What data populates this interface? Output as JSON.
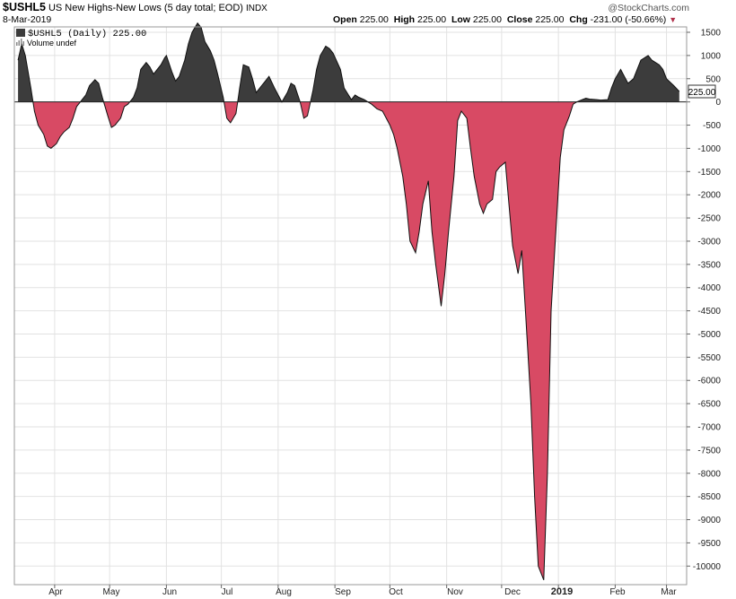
{
  "header": {
    "symbol": "$USHL5",
    "name": "US New Highs-New Lows (5 day total; EOD)",
    "exchange": "INDX",
    "date": "8-Mar-2019",
    "watermark": "@StockCharts.com",
    "open_label": "Open",
    "open": "225.00",
    "high_label": "High",
    "high": "225.00",
    "low_label": "Low",
    "low": "225.00",
    "close_label": "Close",
    "close": "225.00",
    "chg_label": "Chg",
    "chg": "-231.00 (-50.66%)"
  },
  "legend": {
    "series_text": "$USHL5 (Daily) 225.00",
    "volume_text": "Volume undef"
  },
  "chart_data": {
    "type": "area",
    "title": "$USHL5 US New Highs-New Lows (5 day total; EOD) INDX",
    "ylim": [
      -10400,
      1700
    ],
    "yticks": [
      1500,
      1000,
      500,
      0,
      -500,
      -1000,
      -1500,
      -2000,
      -2500,
      -3000,
      -3500,
      -4000,
      -4500,
      -5000,
      -5500,
      -6000,
      -6500,
      -7000,
      -7500,
      -8000,
      -8500,
      -9000,
      -9500,
      -10000
    ],
    "xticks": [
      "Apr",
      "May",
      "Jun",
      "Jul",
      "Aug",
      "Sep",
      "Oct",
      "Nov",
      "Dec",
      "2019",
      "Feb",
      "Mar"
    ],
    "last_value": "225.00",
    "positive_color": "#3c3c3c",
    "negative_color": "#d84a64",
    "grid": true,
    "series": [
      {
        "points": [
          [
            "2018-03-12",
            900
          ],
          [
            "2018-03-14",
            1250
          ],
          [
            "2018-03-16",
            1000
          ],
          [
            "2018-03-19",
            300
          ],
          [
            "2018-03-21",
            -200
          ],
          [
            "2018-03-23",
            -500
          ],
          [
            "2018-03-26",
            -700
          ],
          [
            "2018-03-28",
            -950
          ],
          [
            "2018-03-30",
            -1000
          ],
          [
            "2018-04-02",
            -900
          ],
          [
            "2018-04-04",
            -750
          ],
          [
            "2018-04-06",
            -650
          ],
          [
            "2018-04-09",
            -550
          ],
          [
            "2018-04-11",
            -350
          ],
          [
            "2018-04-13",
            -100
          ],
          [
            "2018-04-16",
            50
          ],
          [
            "2018-04-18",
            150
          ],
          [
            "2018-04-20",
            350
          ],
          [
            "2018-04-23",
            480
          ],
          [
            "2018-04-25",
            400
          ],
          [
            "2018-04-27",
            100
          ],
          [
            "2018-04-30",
            -300
          ],
          [
            "2018-05-02",
            -550
          ],
          [
            "2018-05-04",
            -500
          ],
          [
            "2018-05-07",
            -350
          ],
          [
            "2018-05-09",
            -100
          ],
          [
            "2018-05-11",
            -50
          ],
          [
            "2018-05-14",
            100
          ],
          [
            "2018-05-16",
            300
          ],
          [
            "2018-05-18",
            700
          ],
          [
            "2018-05-21",
            850
          ],
          [
            "2018-05-23",
            750
          ],
          [
            "2018-05-25",
            600
          ],
          [
            "2018-05-29",
            800
          ],
          [
            "2018-05-31",
            950
          ],
          [
            "2018-06-01",
            1000
          ],
          [
            "2018-06-04",
            650
          ],
          [
            "2018-06-06",
            450
          ],
          [
            "2018-06-08",
            550
          ],
          [
            "2018-06-11",
            900
          ],
          [
            "2018-06-13",
            1250
          ],
          [
            "2018-06-15",
            1500
          ],
          [
            "2018-06-18",
            1700
          ],
          [
            "2018-06-20",
            1600
          ],
          [
            "2018-06-22",
            1300
          ],
          [
            "2018-06-25",
            1100
          ],
          [
            "2018-06-27",
            900
          ],
          [
            "2018-06-29",
            600
          ],
          [
            "2018-07-02",
            100
          ],
          [
            "2018-07-04",
            -350
          ],
          [
            "2018-07-06",
            -450
          ],
          [
            "2018-07-09",
            -250
          ],
          [
            "2018-07-11",
            300
          ],
          [
            "2018-07-13",
            800
          ],
          [
            "2018-07-16",
            750
          ],
          [
            "2018-07-18",
            500
          ],
          [
            "2018-07-20",
            200
          ],
          [
            "2018-07-23",
            350
          ],
          [
            "2018-07-25",
            450
          ],
          [
            "2018-07-27",
            550
          ],
          [
            "2018-07-30",
            300
          ],
          [
            "2018-08-01",
            150
          ],
          [
            "2018-08-03",
            0
          ],
          [
            "2018-08-06",
            200
          ],
          [
            "2018-08-08",
            400
          ],
          [
            "2018-08-10",
            350
          ],
          [
            "2018-08-13",
            0
          ],
          [
            "2018-08-15",
            -350
          ],
          [
            "2018-08-17",
            -300
          ],
          [
            "2018-08-20",
            250
          ],
          [
            "2018-08-22",
            700
          ],
          [
            "2018-08-24",
            1000
          ],
          [
            "2018-08-27",
            1200
          ],
          [
            "2018-08-29",
            1150
          ],
          [
            "2018-08-31",
            1050
          ],
          [
            "2018-09-04",
            700
          ],
          [
            "2018-09-06",
            300
          ],
          [
            "2018-09-10",
            50
          ],
          [
            "2018-09-12",
            150
          ],
          [
            "2018-09-14",
            100
          ],
          [
            "2018-09-17",
            50
          ],
          [
            "2018-09-19",
            0
          ],
          [
            "2018-09-21",
            -50
          ],
          [
            "2018-09-24",
            -150
          ],
          [
            "2018-09-27",
            -200
          ],
          [
            "2018-10-01",
            -500
          ],
          [
            "2018-10-03",
            -700
          ],
          [
            "2018-10-05",
            -1000
          ],
          [
            "2018-10-08",
            -1600
          ],
          [
            "2018-10-10",
            -2200
          ],
          [
            "2018-10-12",
            -3000
          ],
          [
            "2018-10-15",
            -3250
          ],
          [
            "2018-10-17",
            -2800
          ],
          [
            "2018-10-19",
            -2200
          ],
          [
            "2018-10-22",
            -1700
          ],
          [
            "2018-10-24",
            -2800
          ],
          [
            "2018-10-26",
            -3500
          ],
          [
            "2018-10-29",
            -4400
          ],
          [
            "2018-10-31",
            -3700
          ],
          [
            "2018-11-02",
            -2800
          ],
          [
            "2018-11-05",
            -1600
          ],
          [
            "2018-11-07",
            -400
          ],
          [
            "2018-11-09",
            -200
          ],
          [
            "2018-11-12",
            -350
          ],
          [
            "2018-11-14",
            -1000
          ],
          [
            "2018-11-16",
            -1600
          ],
          [
            "2018-11-19",
            -2200
          ],
          [
            "2018-11-21",
            -2400
          ],
          [
            "2018-11-23",
            -2200
          ],
          [
            "2018-11-26",
            -2100
          ],
          [
            "2018-11-28",
            -1500
          ],
          [
            "2018-11-30",
            -1400
          ],
          [
            "2018-12-03",
            -1300
          ],
          [
            "2018-12-05",
            -2200
          ],
          [
            "2018-12-07",
            -3100
          ],
          [
            "2018-12-10",
            -3700
          ],
          [
            "2018-12-12",
            -3200
          ],
          [
            "2018-12-14",
            -4500
          ],
          [
            "2018-12-17",
            -6500
          ],
          [
            "2018-12-19",
            -8500
          ],
          [
            "2018-12-21",
            -10000
          ],
          [
            "2018-12-24",
            -10300
          ],
          [
            "2018-12-26",
            -8000
          ],
          [
            "2018-12-28",
            -4500
          ],
          [
            "2019-01-02",
            -1200
          ],
          [
            "2019-01-04",
            -600
          ],
          [
            "2019-01-07",
            -300
          ],
          [
            "2019-01-09",
            -50
          ],
          [
            "2019-01-11",
            0
          ],
          [
            "2019-01-14",
            50
          ],
          [
            "2019-01-16",
            80
          ],
          [
            "2019-01-18",
            60
          ],
          [
            "2019-01-22",
            50
          ],
          [
            "2019-01-24",
            40
          ],
          [
            "2019-01-28",
            50
          ],
          [
            "2019-01-30",
            300
          ],
          [
            "2019-02-01",
            500
          ],
          [
            "2019-02-04",
            700
          ],
          [
            "2019-02-06",
            550
          ],
          [
            "2019-02-08",
            400
          ],
          [
            "2019-02-11",
            500
          ],
          [
            "2019-02-13",
            700
          ],
          [
            "2019-02-15",
            900
          ],
          [
            "2019-02-19",
            1000
          ],
          [
            "2019-02-21",
            900
          ],
          [
            "2019-02-25",
            800
          ],
          [
            "2019-02-27",
            700
          ],
          [
            "2019-03-01",
            500
          ],
          [
            "2019-03-05",
            350
          ],
          [
            "2019-03-08",
            225
          ]
        ]
      }
    ]
  }
}
